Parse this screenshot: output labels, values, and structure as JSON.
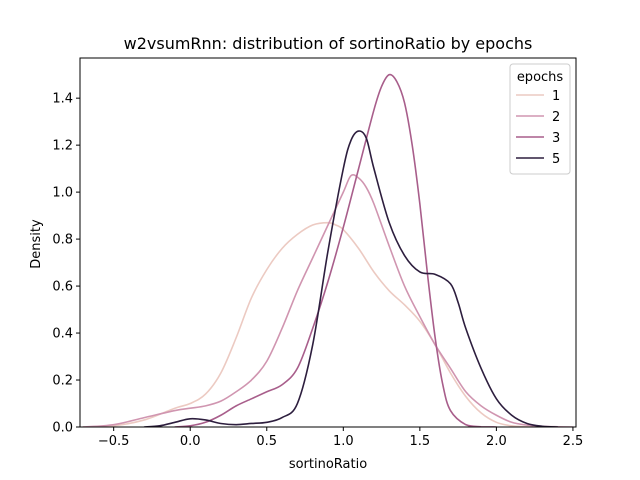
{
  "chart_data": {
    "type": "line",
    "title": "w2vsumRnn: distribution of sortinoRatio by epochs",
    "xlabel": "sortinoRatio",
    "ylabel": "Density",
    "xlim": [
      -0.72,
      2.52
    ],
    "ylim": [
      0,
      1.571
    ],
    "xticks": [
      -0.5,
      0.0,
      0.5,
      1.0,
      1.5,
      2.0,
      2.5
    ],
    "xtick_labels": [
      "−0.5",
      "0.0",
      "0.5",
      "1.0",
      "1.5",
      "2.0",
      "2.5"
    ],
    "yticks": [
      0.0,
      0.2,
      0.4,
      0.6,
      0.8,
      1.0,
      1.2,
      1.4
    ],
    "ytick_labels": [
      "0.0",
      "0.2",
      "0.4",
      "0.6",
      "0.8",
      "1.0",
      "1.2",
      "1.4"
    ],
    "grid": false,
    "legend": {
      "title": "epochs",
      "position": "top-right"
    },
    "series": [
      {
        "name": "1",
        "color": "#eccac2",
        "x": [
          -0.7,
          -0.5,
          -0.3,
          -0.1,
          0.0,
          0.1,
          0.2,
          0.3,
          0.4,
          0.5,
          0.6,
          0.7,
          0.8,
          0.9,
          0.95,
          1.0,
          1.1,
          1.2,
          1.3,
          1.4,
          1.5,
          1.6,
          1.7,
          1.8,
          1.9,
          2.0,
          2.1,
          2.2,
          2.3
        ],
        "y": [
          0.0,
          0.005,
          0.03,
          0.08,
          0.1,
          0.14,
          0.23,
          0.38,
          0.55,
          0.67,
          0.76,
          0.82,
          0.86,
          0.87,
          0.86,
          0.84,
          0.76,
          0.66,
          0.58,
          0.52,
          0.45,
          0.35,
          0.23,
          0.13,
          0.06,
          0.02,
          0.005,
          0.001,
          0.0
        ]
      },
      {
        "name": "2",
        "color": "#d095b0",
        "x": [
          -0.7,
          -0.5,
          -0.3,
          -0.1,
          0.0,
          0.1,
          0.2,
          0.3,
          0.4,
          0.5,
          0.6,
          0.7,
          0.8,
          0.9,
          1.0,
          1.05,
          1.1,
          1.15,
          1.2,
          1.3,
          1.4,
          1.5,
          1.6,
          1.7,
          1.8,
          1.9,
          2.0,
          2.1,
          2.2,
          2.3,
          2.4,
          2.5
        ],
        "y": [
          0.0,
          0.01,
          0.04,
          0.07,
          0.08,
          0.09,
          0.11,
          0.15,
          0.2,
          0.28,
          0.42,
          0.58,
          0.72,
          0.86,
          1.0,
          1.07,
          1.06,
          1.02,
          0.95,
          0.77,
          0.6,
          0.47,
          0.35,
          0.25,
          0.15,
          0.09,
          0.05,
          0.02,
          0.008,
          0.003,
          0.001,
          0.0
        ]
      },
      {
        "name": "3",
        "color": "#a85e8b",
        "x": [
          -0.1,
          0.0,
          0.1,
          0.2,
          0.3,
          0.4,
          0.5,
          0.6,
          0.7,
          0.8,
          0.9,
          1.0,
          1.1,
          1.2,
          1.25,
          1.3,
          1.35,
          1.4,
          1.45,
          1.5,
          1.55,
          1.6,
          1.65,
          1.7,
          1.8,
          1.9,
          2.0
        ],
        "y": [
          0.0,
          0.005,
          0.02,
          0.05,
          0.09,
          0.12,
          0.15,
          0.18,
          0.25,
          0.42,
          0.62,
          0.85,
          1.1,
          1.35,
          1.45,
          1.5,
          1.47,
          1.38,
          1.2,
          0.95,
          0.65,
          0.38,
          0.18,
          0.07,
          0.01,
          0.001,
          0.0
        ]
      },
      {
        "name": "5",
        "color": "#2d1e3e",
        "x": [
          -0.3,
          -0.2,
          -0.1,
          0.0,
          0.1,
          0.2,
          0.3,
          0.4,
          0.5,
          0.6,
          0.7,
          0.8,
          0.9,
          1.0,
          1.05,
          1.1,
          1.15,
          1.2,
          1.3,
          1.4,
          1.5,
          1.6,
          1.7,
          1.75,
          1.8,
          1.9,
          2.0,
          2.1,
          2.2,
          2.3,
          2.4
        ],
        "y": [
          0.0,
          0.005,
          0.02,
          0.035,
          0.03,
          0.015,
          0.01,
          0.015,
          0.02,
          0.04,
          0.1,
          0.35,
          0.75,
          1.1,
          1.22,
          1.26,
          1.23,
          1.1,
          0.87,
          0.73,
          0.66,
          0.65,
          0.61,
          0.53,
          0.42,
          0.25,
          0.12,
          0.05,
          0.015,
          0.003,
          0.0
        ]
      }
    ]
  }
}
